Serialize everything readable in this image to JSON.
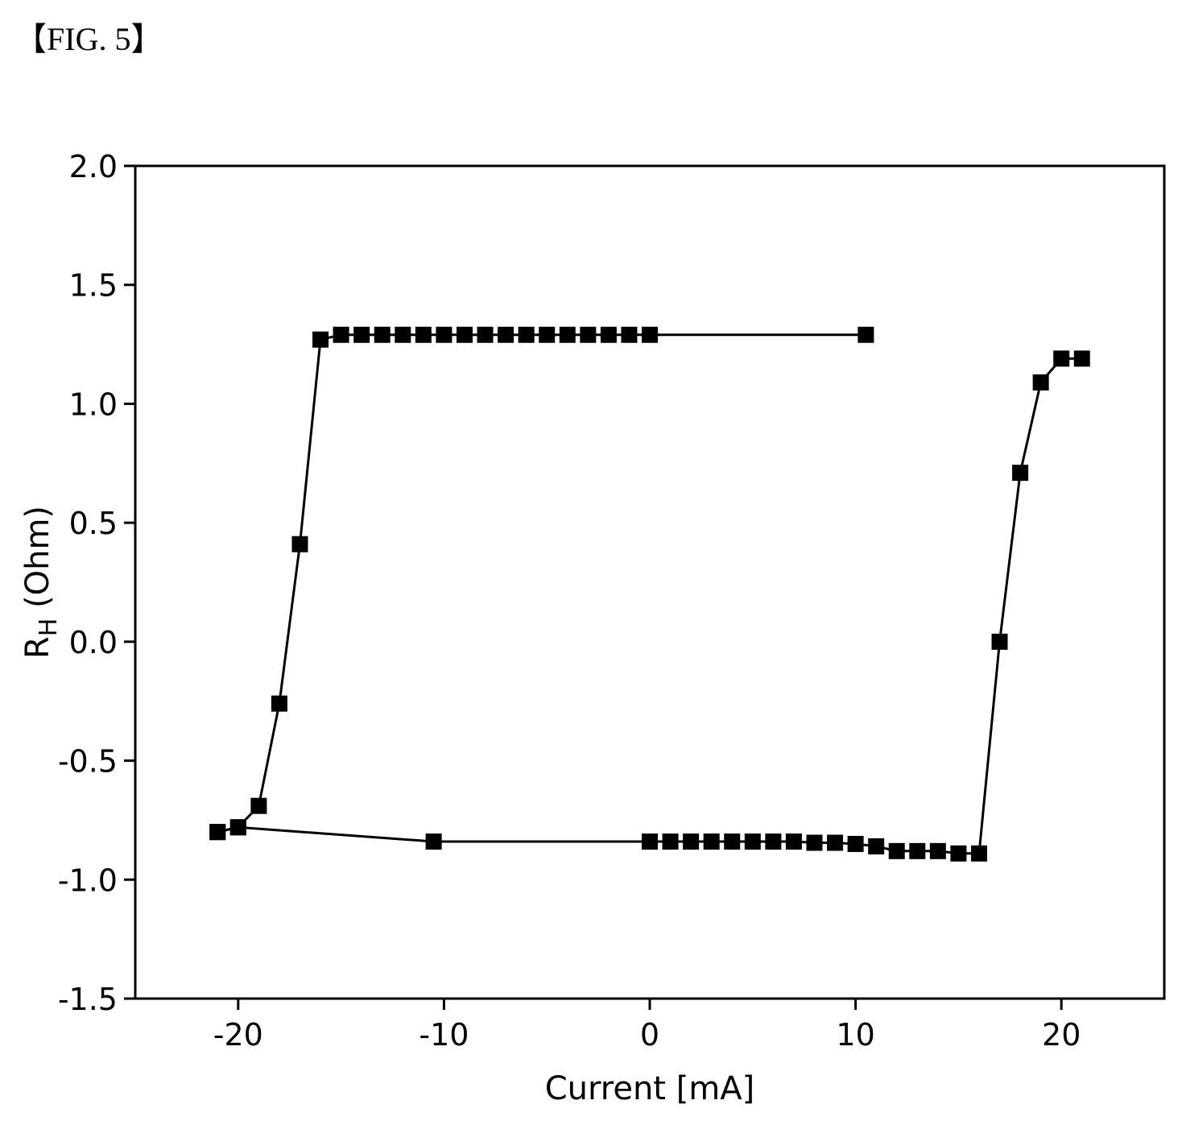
{
  "figure_label": "【FIG. 5】",
  "chart_data": {
    "type": "line",
    "xlabel": "Current [mA]",
    "ylabel_main": "R",
    "ylabel_sub": "H",
    "ylabel_rest": " (Ohm)",
    "xlim": [
      -25,
      25
    ],
    "ylim": [
      -1.5,
      2.0
    ],
    "xticks": [
      -20,
      -10,
      0,
      10,
      20
    ],
    "xtick_labels": [
      "-20",
      "-10",
      "0",
      "10",
      "20"
    ],
    "yticks": [
      -1.5,
      -1.0,
      -0.5,
      0.0,
      0.5,
      1.0,
      1.5,
      2.0
    ],
    "ytick_labels": [
      "-1.5",
      "-1.0",
      "-0.5",
      "0.0",
      "0.5",
      "1.0",
      "1.5",
      "2.0"
    ],
    "marker": "square",
    "color": "#000000",
    "series": [
      {
        "x": [
          -21,
          -20,
          -10.5,
          0,
          1,
          2,
          3,
          4,
          5,
          6,
          7,
          8,
          9,
          10,
          11,
          12,
          13,
          14,
          15,
          16,
          17,
          18,
          19,
          20,
          21
        ],
        "y": [
          -0.8,
          -0.78,
          -0.84,
          -0.84,
          -0.84,
          -0.84,
          -0.84,
          -0.84,
          -0.84,
          -0.84,
          -0.84,
          -0.845,
          -0.845,
          -0.85,
          -0.86,
          -0.88,
          -0.88,
          -0.88,
          -0.89,
          -0.89,
          0.0,
          0.71,
          1.09,
          1.19,
          1.19
        ]
      },
      {
        "x": [
          -21,
          -20,
          -19,
          -18,
          -17,
          -16,
          -15,
          -14,
          -13,
          -12,
          -11,
          -10,
          -9,
          -8,
          -7,
          -6,
          -5,
          -4,
          -3,
          -2,
          -1,
          0,
          10.5
        ],
        "y": [
          -0.8,
          -0.78,
          -0.69,
          -0.26,
          0.41,
          1.27,
          1.29,
          1.29,
          1.29,
          1.29,
          1.29,
          1.29,
          1.29,
          1.29,
          1.29,
          1.29,
          1.29,
          1.29,
          1.29,
          1.29,
          1.29,
          1.29,
          1.29
        ]
      }
    ]
  }
}
